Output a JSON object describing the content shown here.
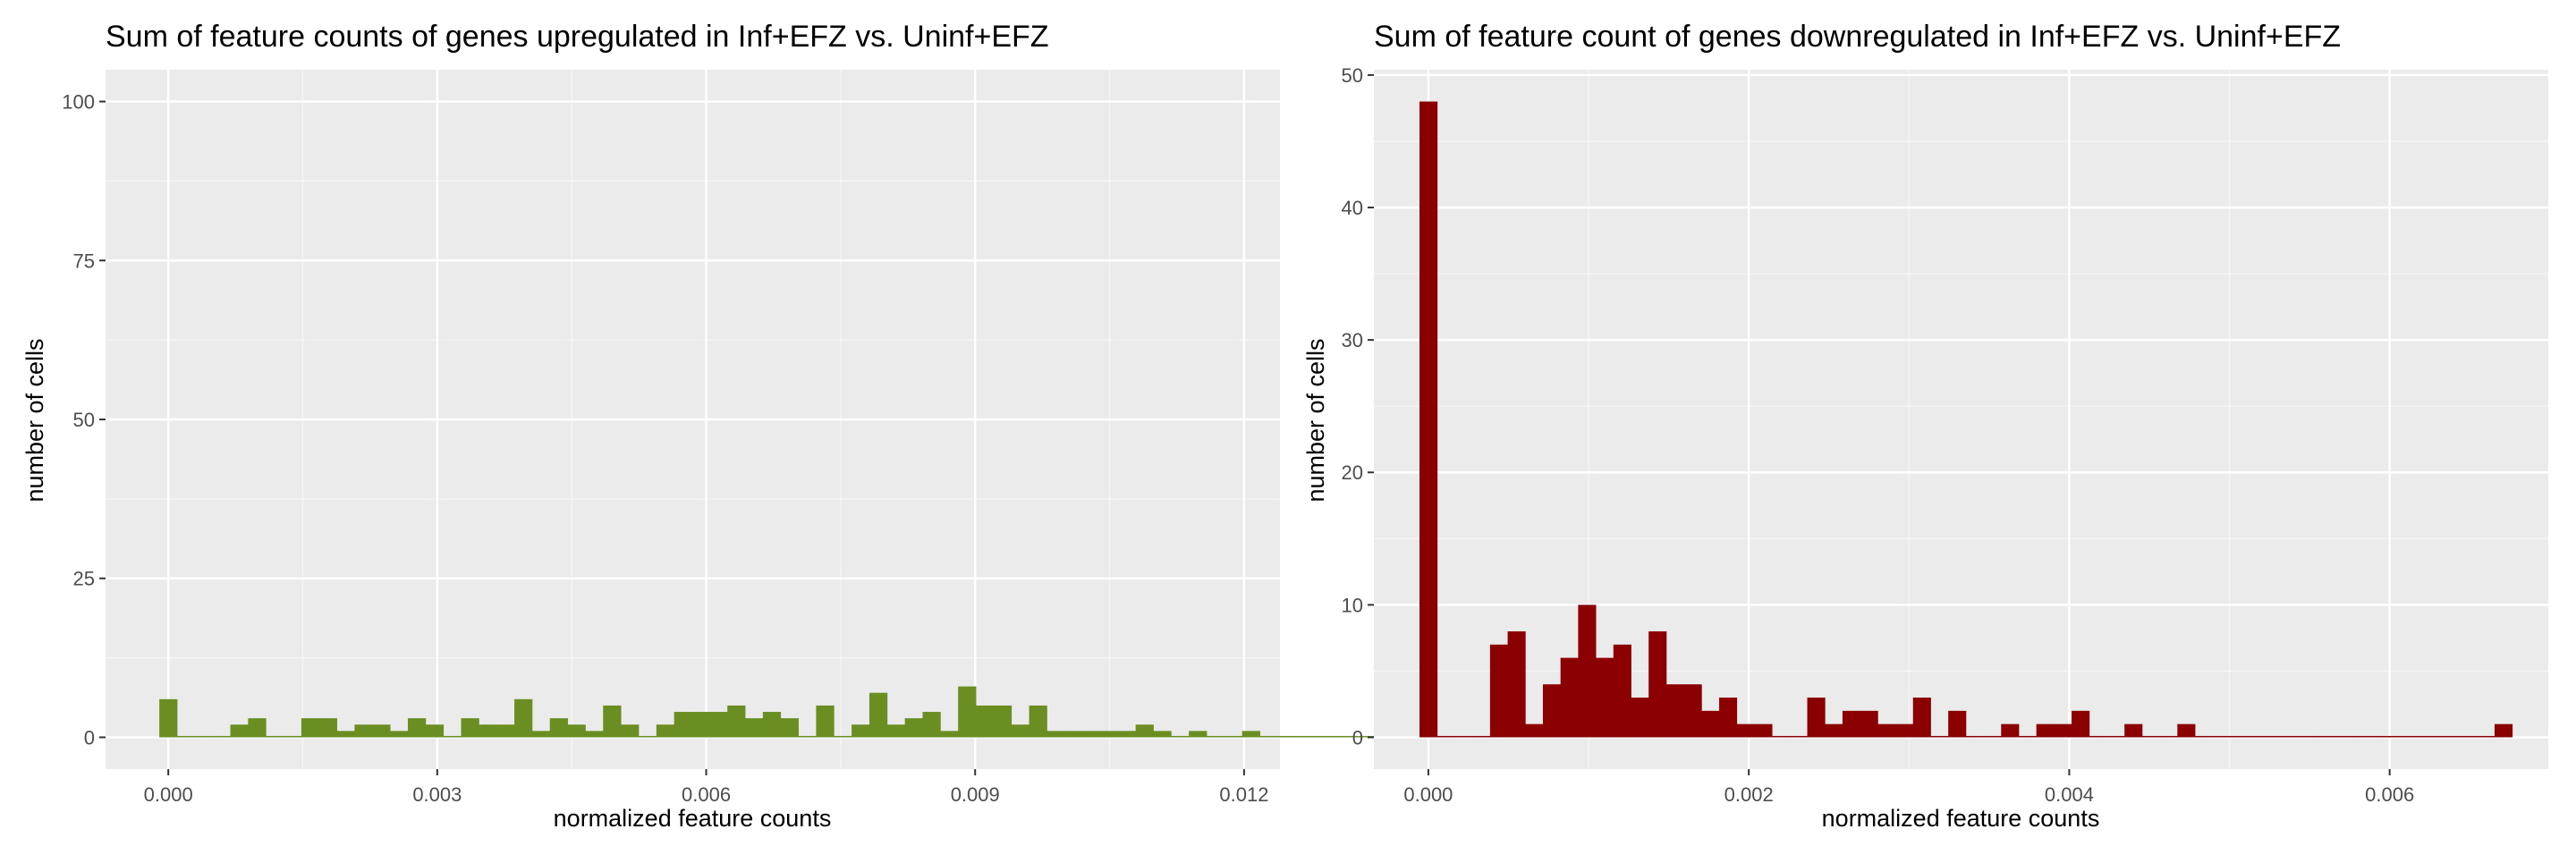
{
  "colors": {
    "panel_bg": "#EBEBEB",
    "grid_major": "#FFFFFF",
    "axis_text": "#4D4D4D",
    "title_text": "#000000",
    "left_bars": "#6B8E23",
    "right_bars": "#8B0000"
  },
  "chart_data": [
    {
      "type": "bar",
      "subtype": "histogram",
      "title": "Sum of feature counts of genes upregulated in Inf+EFZ vs. Uninf+EFZ",
      "xlabel": "normalized feature counts",
      "ylabel": "number of cells",
      "xlim": [
        -0.0007,
        0.0124
      ],
      "ylim": [
        -5,
        105
      ],
      "x_ticks": [
        0.0,
        0.003,
        0.006,
        0.009,
        0.012
      ],
      "x_tick_labels": [
        "0.000",
        "0.003",
        "0.006",
        "0.009",
        "0.012"
      ],
      "y_ticks": [
        0,
        25,
        50,
        75,
        100
      ],
      "y_tick_labels": [
        "0",
        "25",
        "50",
        "75",
        "100"
      ],
      "bin_start": -0.0001,
      "bin_width": 0.000198,
      "values": [
        6,
        0,
        0,
        0,
        2,
        3,
        0,
        0,
        3,
        3,
        1,
        2,
        2,
        1,
        3,
        2,
        0,
        3,
        2,
        2,
        6,
        1,
        3,
        2,
        1,
        5,
        2,
        0,
        2,
        4,
        4,
        4,
        5,
        3,
        4,
        3,
        0,
        5,
        0,
        2,
        7,
        2,
        3,
        4,
        1,
        8,
        5,
        5,
        2,
        5,
        1,
        1,
        1,
        1,
        1,
        2,
        1,
        0,
        1,
        0,
        0,
        1,
        0,
        0,
        0,
        0,
        0,
        0,
        0,
        0,
        0,
        1,
        0,
        1
      ],
      "grid": true,
      "legend": "none"
    },
    {
      "type": "bar",
      "subtype": "histogram",
      "title": "Sum of feature count of genes downregulated in Inf+EFZ vs. Uninf+EFZ",
      "xlabel": "normalized feature counts",
      "ylabel": "number of cells",
      "xlim": [
        -0.00034,
        0.00699
      ],
      "ylim": [
        -2.4,
        50.4
      ],
      "x_ticks": [
        0.0,
        0.002,
        0.004,
        0.006
      ],
      "x_tick_labels": [
        "0.000",
        "0.002",
        "0.004",
        "0.006"
      ],
      "y_ticks": [
        0,
        10,
        20,
        30,
        40,
        50
      ],
      "y_tick_labels": [
        "0",
        "10",
        "20",
        "30",
        "40",
        "50"
      ],
      "bin_start": -5.5e-05,
      "bin_width": 0.00011,
      "values": [
        48,
        0,
        0,
        0,
        7,
        8,
        1,
        4,
        6,
        10,
        6,
        7,
        3,
        8,
        4,
        4,
        2,
        3,
        1,
        1,
        0,
        0,
        3,
        1,
        2,
        2,
        1,
        1,
        3,
        0,
        2,
        0,
        0,
        1,
        0,
        1,
        1,
        2,
        0,
        0,
        1,
        0,
        0,
        1,
        0,
        0,
        0,
        0,
        0,
        0,
        0,
        0,
        0,
        0,
        0,
        0,
        0,
        0,
        0,
        0,
        0,
        1
      ],
      "grid": true,
      "legend": "none"
    }
  ]
}
